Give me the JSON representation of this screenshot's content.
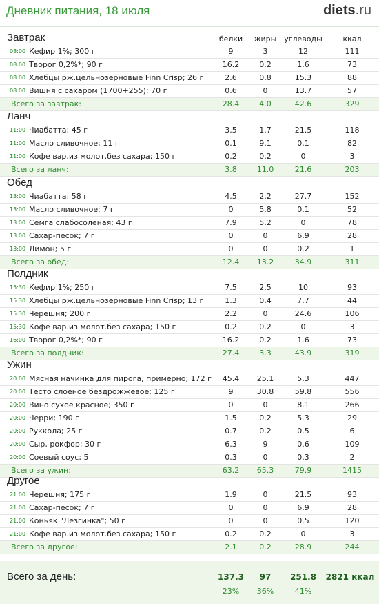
{
  "header": {
    "title": "Дневник питания, 18 июля",
    "logo_main": "diets",
    "logo_tld": ".ru"
  },
  "columns": {
    "protein": "белки",
    "fat": "жиры",
    "carbs": "углеводы",
    "kcal": "ккал"
  },
  "meals": [
    {
      "title": "Завтрак",
      "items": [
        {
          "time": "08:00",
          "name": "Кефир 1%; 300 г",
          "protein": "9",
          "fat": "3",
          "carbs": "12",
          "kcal": "111"
        },
        {
          "time": "08:00",
          "name": "Творог 0,2%*; 90 г",
          "protein": "16.2",
          "fat": "0.2",
          "carbs": "1.6",
          "kcal": "73"
        },
        {
          "time": "08:00",
          "name": "Хлебцы рж.цельнозерновые Finn Crisp; 26 г",
          "protein": "2.6",
          "fat": "0.8",
          "carbs": "15.3",
          "kcal": "88"
        },
        {
          "time": "08:00",
          "name": "Вишня с сахаром (1700+255); 70 г",
          "protein": "0.6",
          "fat": "0",
          "carbs": "13.7",
          "kcal": "57"
        }
      ],
      "total": {
        "label": "Всего за завтрак:",
        "protein": "28.4",
        "fat": "4.0",
        "carbs": "42.6",
        "kcal": "329"
      }
    },
    {
      "title": "Ланч",
      "items": [
        {
          "time": "11:00",
          "name": "Чиабатта; 45 г",
          "protein": "3.5",
          "fat": "1.7",
          "carbs": "21.5",
          "kcal": "118"
        },
        {
          "time": "11:00",
          "name": "Масло сливочное; 11 г",
          "protein": "0.1",
          "fat": "9.1",
          "carbs": "0.1",
          "kcal": "82"
        },
        {
          "time": "11:00",
          "name": "Кофе вар.из молот.без сахара; 150 г",
          "protein": "0.2",
          "fat": "0.2",
          "carbs": "0",
          "kcal": "3"
        }
      ],
      "total": {
        "label": "Всего за ланч:",
        "protein": "3.8",
        "fat": "11.0",
        "carbs": "21.6",
        "kcal": "203"
      }
    },
    {
      "title": "Обед",
      "items": [
        {
          "time": "13:00",
          "name": "Чиабатта; 58 г",
          "protein": "4.5",
          "fat": "2.2",
          "carbs": "27.7",
          "kcal": "152"
        },
        {
          "time": "13:00",
          "name": "Масло сливочное; 7 г",
          "protein": "0",
          "fat": "5.8",
          "carbs": "0.1",
          "kcal": "52"
        },
        {
          "time": "13:00",
          "name": "Сёмга слабосолёная; 43 г",
          "protein": "7.9",
          "fat": "5.2",
          "carbs": "0",
          "kcal": "78"
        },
        {
          "time": "13:00",
          "name": "Сахар-песок; 7 г",
          "protein": "0",
          "fat": "0",
          "carbs": "6.9",
          "kcal": "28"
        },
        {
          "time": "13:00",
          "name": "Лимон; 5 г",
          "protein": "0",
          "fat": "0",
          "carbs": "0.2",
          "kcal": "1"
        }
      ],
      "total": {
        "label": "Всего за обед:",
        "protein": "12.4",
        "fat": "13.2",
        "carbs": "34.9",
        "kcal": "311"
      }
    },
    {
      "title": "Полдник",
      "items": [
        {
          "time": "15:30",
          "name": "Кефир 1%; 250 г",
          "protein": "7.5",
          "fat": "2.5",
          "carbs": "10",
          "kcal": "93"
        },
        {
          "time": "15:30",
          "name": "Хлебцы рж.цельнозерновые Finn Crisp; 13 г",
          "protein": "1.3",
          "fat": "0.4",
          "carbs": "7.7",
          "kcal": "44"
        },
        {
          "time": "15:30",
          "name": "Черешня; 200 г",
          "protein": "2.2",
          "fat": "0",
          "carbs": "24.6",
          "kcal": "106"
        },
        {
          "time": "15:30",
          "name": "Кофе вар.из молот.без сахара; 150 г",
          "protein": "0.2",
          "fat": "0.2",
          "carbs": "0",
          "kcal": "3"
        },
        {
          "time": "16:00",
          "name": "Творог 0,2%*; 90 г",
          "protein": "16.2",
          "fat": "0.2",
          "carbs": "1.6",
          "kcal": "73"
        }
      ],
      "total": {
        "label": "Всего за полдник:",
        "protein": "27.4",
        "fat": "3.3",
        "carbs": "43.9",
        "kcal": "319"
      }
    },
    {
      "title": "Ужин",
      "items": [
        {
          "time": "20:00",
          "name": "Мясная начинка для пирога, примерно; 172 г",
          "protein": "45.4",
          "fat": "25.1",
          "carbs": "5.3",
          "kcal": "447"
        },
        {
          "time": "20:00",
          "name": "Тесто слоеное бездрожжевое; 125 г",
          "protein": "9",
          "fat": "30.8",
          "carbs": "59.8",
          "kcal": "556"
        },
        {
          "time": "20:00",
          "name": "Вино сухое красное; 350 г",
          "protein": "0",
          "fat": "0",
          "carbs": "8.1",
          "kcal": "266"
        },
        {
          "time": "20:00",
          "name": "Черри; 190 г",
          "protein": "1.5",
          "fat": "0.2",
          "carbs": "5.3",
          "kcal": "29"
        },
        {
          "time": "20:00",
          "name": "Руккола; 25 г",
          "protein": "0.7",
          "fat": "0.2",
          "carbs": "0.5",
          "kcal": "6"
        },
        {
          "time": "20:00",
          "name": "Сыр, рокфор; 30 г",
          "protein": "6.3",
          "fat": "9",
          "carbs": "0.6",
          "kcal": "109"
        },
        {
          "time": "20:00",
          "name": "Соевый соус; 5 г",
          "protein": "0.3",
          "fat": "0",
          "carbs": "0.3",
          "kcal": "2"
        }
      ],
      "total": {
        "label": "Всего за ужин:",
        "protein": "63.2",
        "fat": "65.3",
        "carbs": "79.9",
        "kcal": "1415"
      }
    },
    {
      "title": "Другое",
      "items": [
        {
          "time": "21:00",
          "name": "Черешня; 175 г",
          "protein": "1.9",
          "fat": "0",
          "carbs": "21.5",
          "kcal": "93"
        },
        {
          "time": "21:00",
          "name": "Сахар-песок; 7 г",
          "protein": "0",
          "fat": "0",
          "carbs": "6.9",
          "kcal": "28"
        },
        {
          "time": "21:00",
          "name": "Коньяк \"Лезгинка\"; 50 г",
          "protein": "0",
          "fat": "0",
          "carbs": "0.5",
          "kcal": "120"
        },
        {
          "time": "21:00",
          "name": "Кофе вар.из молот.без сахара; 150 г",
          "protein": "0.2",
          "fat": "0.2",
          "carbs": "0",
          "kcal": "3"
        }
      ],
      "total": {
        "label": "Всего за другое:",
        "protein": "2.1",
        "fat": "0.2",
        "carbs": "28.9",
        "kcal": "244"
      }
    }
  ],
  "day_total": {
    "label": "Всего за день:",
    "protein": "137.3",
    "fat": "97",
    "carbs": "251.8",
    "kcal": "2821",
    "kcal_unit": "ккал",
    "protein_pct": "23%",
    "fat_pct": "36%",
    "carbs_pct": "41%"
  },
  "colors": {
    "accent_green": "#3b9a3b",
    "total_bg": "#eef6ea",
    "time_green": "#1a8a1a"
  }
}
